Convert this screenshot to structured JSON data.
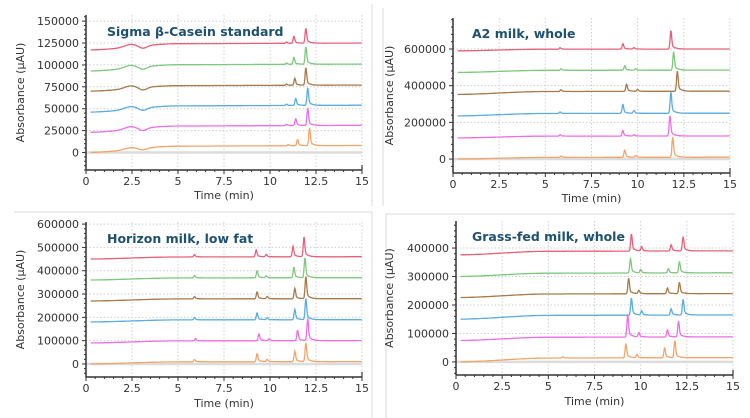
{
  "chart_data": [
    {
      "type": "line",
      "title": "Sigma β-Casein standard",
      "xlabel": "Time (min)",
      "ylabel": "Absorbance (µAU)",
      "xlim": [
        0,
        15
      ],
      "ylim": [
        -20000,
        157000
      ],
      "xticks": [
        "0",
        "2.5",
        "5",
        "7.5",
        "10",
        "12.5",
        "15"
      ],
      "yticks": [
        "0",
        "25000",
        "50000",
        "75000",
        "100000",
        "125000",
        "150000"
      ],
      "ytick_values": [
        0,
        25000,
        50000,
        75000,
        100000,
        125000,
        150000
      ],
      "grid": true,
      "series": [
        {
          "color": "#e8607a",
          "start": 117000,
          "end": 125000,
          "hump": 3000,
          "peaks": [
            [
              10.9,
              1500
            ],
            [
              11.3,
              8000
            ],
            [
              11.95,
              17000
            ]
          ]
        },
        {
          "color": "#7cc87c",
          "start": 93000,
          "end": 101000,
          "hump": 3000,
          "peaks": [
            [
              10.9,
              1500
            ],
            [
              11.3,
              8000
            ],
            [
              11.95,
              20000
            ]
          ]
        },
        {
          "color": "#a87a4a",
          "start": 70000,
          "end": 77000,
          "hump": 3000,
          "peaks": [
            [
              10.9,
              1500
            ],
            [
              11.35,
              8000
            ],
            [
              11.95,
              20000
            ]
          ]
        },
        {
          "color": "#5aade0",
          "start": 46000,
          "end": 54000,
          "hump": 3000,
          "peaks": [
            [
              10.9,
              1500
            ],
            [
              11.4,
              8000
            ],
            [
              12.05,
              20000
            ]
          ]
        },
        {
          "color": "#ee6ee8",
          "start": 23000,
          "end": 31000,
          "hump": 3000,
          "peaks": [
            [
              10.9,
              1500
            ],
            [
              11.4,
              8000
            ],
            [
              12.05,
              20000
            ]
          ]
        },
        {
          "color": "#f4a46a",
          "start": 0,
          "end": 8000,
          "hump": 2000,
          "peaks": [
            [
              11.0,
              1500
            ],
            [
              11.5,
              7000
            ],
            [
              12.15,
              20000
            ]
          ]
        }
      ]
    },
    {
      "type": "line",
      "title": "A2 milk, whole",
      "xlabel": "Time (min)",
      "ylabel": "Absorbance (µAU)",
      "xlim": [
        0,
        15
      ],
      "ylim": [
        -76000,
        769000
      ],
      "xticks": [
        "0",
        "2.5",
        "5",
        "7.5",
        "10",
        "12.5",
        "15"
      ],
      "yticks": [
        "0",
        "200000",
        "400000",
        "600000"
      ],
      "ytick_values": [
        0,
        200000,
        400000,
        600000
      ],
      "grid": true,
      "series": [
        {
          "color": "#e8607a",
          "start": 590000,
          "end": 600000,
          "hump": 0,
          "peaks": [
            [
              5.8,
              8000
            ],
            [
              9.2,
              30000
            ],
            [
              9.8,
              8000
            ],
            [
              11.8,
              100000
            ]
          ]
        },
        {
          "color": "#7cc87c",
          "start": 472000,
          "end": 485000,
          "hump": 0,
          "peaks": [
            [
              5.85,
              8000
            ],
            [
              9.3,
              25000
            ],
            [
              9.9,
              8000
            ],
            [
              11.95,
              100000
            ]
          ]
        },
        {
          "color": "#a87a4a",
          "start": 352000,
          "end": 370000,
          "hump": 0,
          "peaks": [
            [
              5.85,
              10000
            ],
            [
              9.4,
              40000
            ],
            [
              10.0,
              10000
            ],
            [
              12.15,
              110000
            ]
          ]
        },
        {
          "color": "#5aade0",
          "start": 235000,
          "end": 250000,
          "hump": 0,
          "peaks": [
            [
              5.8,
              8000
            ],
            [
              9.2,
              50000
            ],
            [
              9.8,
              15000
            ],
            [
              11.8,
              115000
            ]
          ]
        },
        {
          "color": "#ee6ee8",
          "start": 115000,
          "end": 126000,
          "hump": 0,
          "peaks": [
            [
              5.8,
              8000
            ],
            [
              9.2,
              30000
            ],
            [
              9.8,
              8000
            ],
            [
              11.75,
              110000
            ]
          ]
        },
        {
          "color": "#f4a46a",
          "start": 0,
          "end": 10000,
          "hump": 0,
          "peaks": [
            [
              5.85,
              8000
            ],
            [
              9.3,
              40000
            ],
            [
              9.9,
              10000
            ],
            [
              11.9,
              110000
            ]
          ]
        }
      ]
    },
    {
      "type": "line",
      "title": "Horizon milk, low fat",
      "xlabel": "Time (min)",
      "ylabel": "Absorbance (µAU)",
      "xlim": [
        0,
        15
      ],
      "ylim": [
        -56000,
        609000
      ],
      "xticks": [
        "0",
        "2.5",
        "5",
        "7.5",
        "10",
        "12.5",
        "15"
      ],
      "yticks": [
        "0",
        "100000",
        "200000",
        "300000",
        "400000",
        "500000",
        "600000"
      ],
      "ytick_values": [
        0,
        100000,
        200000,
        300000,
        400000,
        500000,
        600000
      ],
      "grid": true,
      "series": [
        {
          "color": "#e8607a",
          "start": 450000,
          "end": 460000,
          "hump": 0,
          "peaks": [
            [
              5.9,
              10000
            ],
            [
              9.25,
              30000
            ],
            [
              9.8,
              10000
            ],
            [
              11.25,
              45000
            ],
            [
              11.85,
              85000
            ]
          ]
        },
        {
          "color": "#7cc87c",
          "start": 360000,
          "end": 370000,
          "hump": 0,
          "peaks": [
            [
              5.9,
              10000
            ],
            [
              9.3,
              30000
            ],
            [
              9.8,
              8000
            ],
            [
              11.3,
              45000
            ],
            [
              11.9,
              85000
            ]
          ]
        },
        {
          "color": "#a87a4a",
          "start": 270000,
          "end": 280000,
          "hump": 0,
          "peaks": [
            [
              5.9,
              10000
            ],
            [
              9.3,
              30000
            ],
            [
              9.85,
              10000
            ],
            [
              11.35,
              45000
            ],
            [
              11.95,
              95000
            ]
          ]
        },
        {
          "color": "#5aade0",
          "start": 180000,
          "end": 190000,
          "hump": 0,
          "peaks": [
            [
              5.9,
              10000
            ],
            [
              9.3,
              30000
            ],
            [
              9.85,
              8000
            ],
            [
              11.35,
              45000
            ],
            [
              11.95,
              90000
            ]
          ]
        },
        {
          "color": "#ee6ee8",
          "start": 90000,
          "end": 100000,
          "hump": 0,
          "peaks": [
            [
              5.95,
              10000
            ],
            [
              9.4,
              30000
            ],
            [
              9.95,
              8000
            ],
            [
              11.5,
              45000
            ],
            [
              12.05,
              95000
            ]
          ]
        },
        {
          "color": "#f4a46a",
          "start": 0,
          "end": 10000,
          "hump": 0,
          "peaks": [
            [
              5.9,
              10000
            ],
            [
              9.3,
              35000
            ],
            [
              9.85,
              10000
            ],
            [
              11.35,
              45000
            ],
            [
              11.95,
              80000
            ]
          ]
        }
      ]
    },
    {
      "type": "line",
      "title": "Grass-fed milk, whole",
      "xlabel": "Time (min)",
      "ylabel": "Absorbance (µAU)",
      "xlim": [
        0,
        15
      ],
      "ylim": [
        -46000,
        495000
      ],
      "xticks": [
        "0",
        "2.5",
        "5",
        "7.5",
        "10",
        "12.5",
        "15"
      ],
      "yticks": [
        "0",
        "100000",
        "200000",
        "300000",
        "400000"
      ],
      "ytick_values": [
        0,
        100000,
        200000,
        300000,
        400000
      ],
      "grid": true,
      "series": [
        {
          "color": "#e8607a",
          "start": 376000,
          "end": 390000,
          "hump": 0,
          "peaks": [
            [
              9.5,
              60000
            ],
            [
              10.05,
              15000
            ],
            [
              11.65,
              22000
            ],
            [
              12.3,
              50000
            ]
          ]
        },
        {
          "color": "#7cc87c",
          "start": 300000,
          "end": 313000,
          "hump": 0,
          "peaks": [
            [
              9.45,
              50000
            ],
            [
              10.0,
              12000
            ],
            [
              11.5,
              15000
            ],
            [
              12.1,
              40000
            ]
          ]
        },
        {
          "color": "#a87a4a",
          "start": 226000,
          "end": 240000,
          "hump": 0,
          "peaks": [
            [
              9.35,
              55000
            ],
            [
              9.9,
              12000
            ],
            [
              11.45,
              20000
            ],
            [
              12.1,
              40000
            ]
          ]
        },
        {
          "color": "#5aade0",
          "start": 150000,
          "end": 165000,
          "hump": 0,
          "peaks": [
            [
              9.5,
              60000
            ],
            [
              10.05,
              15000
            ],
            [
              11.65,
              22000
            ],
            [
              12.3,
              55000
            ]
          ]
        },
        {
          "color": "#ee6ee8",
          "start": 75000,
          "end": 88000,
          "hump": 0,
          "peaks": [
            [
              9.3,
              80000
            ],
            [
              9.9,
              15000
            ],
            [
              11.45,
              25000
            ],
            [
              12.05,
              55000
            ]
          ]
        },
        {
          "color": "#f4a46a",
          "start": 0,
          "end": 15000,
          "hump": 0,
          "peaks": [
            [
              5.8,
              4000
            ],
            [
              9.2,
              50000
            ],
            [
              9.8,
              12000
            ],
            [
              11.3,
              35000
            ],
            [
              11.85,
              60000
            ]
          ]
        }
      ]
    }
  ]
}
